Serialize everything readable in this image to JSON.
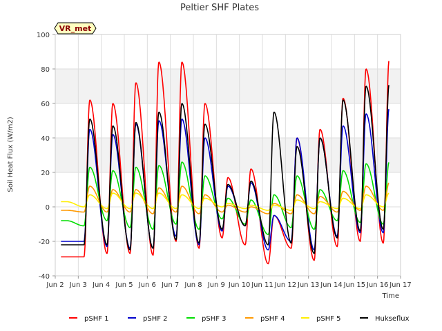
{
  "chart_data": {
    "type": "line",
    "title": "Peltier SHF Plates",
    "xlabel": "Time",
    "ylabel": "Soil Heat Flux (W/m2)",
    "badge": "VR_met",
    "xlim": [
      2,
      17
    ],
    "ylim": [
      -40,
      100
    ],
    "yticks": [
      -40,
      -20,
      0,
      20,
      40,
      60,
      80,
      100
    ],
    "xticks": [
      {
        "day": 2,
        "label": "Jun 2"
      },
      {
        "day": 3,
        "label": "Jun 3"
      },
      {
        "day": 4,
        "label": "Jun 4"
      },
      {
        "day": 5,
        "label": "Jun 5"
      },
      {
        "day": 6,
        "label": "Jun 6"
      },
      {
        "day": 7,
        "label": "Jun 7"
      },
      {
        "day": 8,
        "label": "Jun 8"
      },
      {
        "day": 9,
        "label": "Jun 9"
      },
      {
        "day": 10,
        "label": "Jun 10"
      },
      {
        "day": 11,
        "label": "Jun 11"
      },
      {
        "day": 12,
        "label": "Jun 12"
      },
      {
        "day": 13,
        "label": "Jun 13"
      },
      {
        "day": 14,
        "label": "Jun 14"
      },
      {
        "day": 15,
        "label": "Jun 15"
      },
      {
        "day": 16,
        "label": "Jun 16"
      },
      {
        "day": 17,
        "label": "Jun 17"
      }
    ],
    "background_bands": [
      [
        20,
        40
      ],
      [
        60,
        80
      ]
    ],
    "grid": true,
    "legend_position": "bottom",
    "x_start": 2.25,
    "x_end": 16.5,
    "days": [
      2,
      3,
      4,
      5,
      6,
      7,
      8,
      9,
      10,
      11,
      12,
      13,
      14,
      15,
      16
    ],
    "series": [
      {
        "name": "pSHF 1",
        "color": "#ff0000",
        "peaks": [
          null,
          62,
          60,
          72,
          84,
          84,
          60,
          17,
          22,
          -5,
          40,
          45,
          63,
          80,
          85
        ],
        "troughs": [
          -29,
          -29,
          -27,
          -27,
          -28,
          -20,
          -24,
          -18,
          -22,
          -33,
          -24,
          -31,
          -23,
          -20,
          -21
        ]
      },
      {
        "name": "pSHF 2",
        "color": "#0000cc",
        "peaks": [
          null,
          45,
          42,
          48,
          50,
          51,
          40,
          12,
          14,
          -5,
          40,
          40,
          47,
          54,
          57
        ],
        "troughs": [
          -20,
          -20,
          -23,
          -24,
          -24,
          -17,
          -22,
          -14,
          -11,
          -25,
          -20,
          -25,
          -17,
          -15,
          -15
        ]
      },
      {
        "name": "pSHF 3",
        "color": "#00dd00",
        "peaks": [
          null,
          23,
          21,
          23,
          24,
          26,
          18,
          5,
          4,
          7,
          18,
          10,
          21,
          25,
          26
        ],
        "troughs": [
          -8,
          -11,
          -8,
          -12,
          -13,
          -10,
          -13,
          -7,
          -10,
          -16,
          -12,
          -13,
          -8,
          -9,
          -10
        ]
      },
      {
        "name": "pSHF 4",
        "color": "#ff9900",
        "peaks": [
          null,
          12,
          10,
          10,
          11,
          12,
          7,
          1,
          0,
          2,
          7,
          6,
          9,
          12,
          14
        ],
        "troughs": [
          -2,
          -3,
          -3,
          -3,
          -4,
          -3,
          -4,
          -3,
          -3,
          -4,
          -4,
          -4,
          -3,
          -2,
          -2
        ]
      },
      {
        "name": "pSHF 5",
        "color": "#ffee00",
        "peaks": [
          null,
          7,
          8,
          8,
          8,
          7,
          5,
          2,
          1,
          1,
          4,
          3,
          5,
          7,
          8
        ],
        "troughs": [
          3,
          0,
          -1,
          -1,
          -1,
          -1,
          -1,
          0,
          -1,
          -2,
          -2,
          -1,
          -1,
          -1,
          0
        ]
      },
      {
        "name": "Hukseflux",
        "color": "#000000",
        "peaks": [
          null,
          51,
          47,
          49,
          55,
          60,
          48,
          13,
          15,
          55,
          35,
          40,
          62,
          70,
          71
        ],
        "troughs": [
          -22,
          -22,
          -22,
          -25,
          -24,
          -19,
          -21,
          -13,
          -11,
          -22,
          -21,
          -27,
          -18,
          -14,
          -13
        ]
      }
    ]
  }
}
